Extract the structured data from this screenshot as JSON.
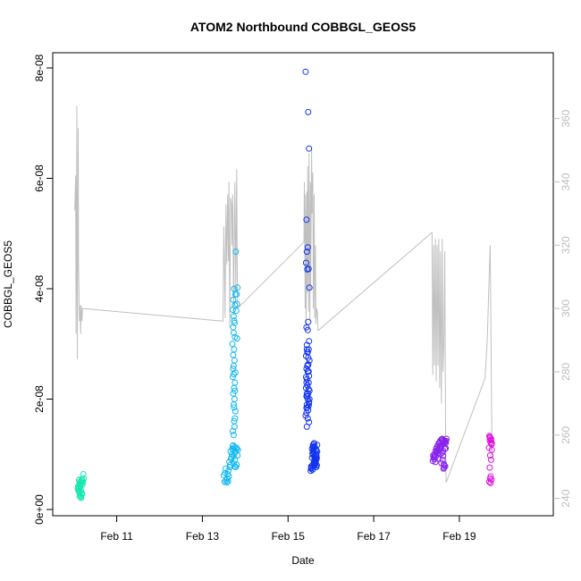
{
  "chart_data": {
    "type": "scatter",
    "title": "ATOM2 Northbound COBBGL_GEOS5",
    "xlabel": "Date",
    "ylabel": "COBBGL_GEOS5",
    "x_unit": "day of February",
    "xlim": [
      9.84,
      20.88
    ],
    "ylim": [
      0,
      8e-08
    ],
    "x_ticks": [
      11,
      13,
      15,
      17,
      19
    ],
    "x_tick_labels": [
      "Feb 11",
      "Feb 13",
      "Feb 15",
      "Feb 17",
      "Feb 19"
    ],
    "y_ticks": [
      0,
      2e-08,
      4e-08,
      6e-08,
      8e-08
    ],
    "y_tick_labels": [
      "0e+00",
      "2e-08",
      "4e-08",
      "6e-08",
      "8e-08"
    ],
    "y2_ticks": [
      240,
      260,
      280,
      300,
      320,
      340,
      360
    ],
    "y2_tick_labels": [
      "240",
      "260",
      "280",
      "300",
      "320",
      "340",
      "360"
    ],
    "y2_range": [
      236.5,
      376
    ],
    "colors": {
      "flight1": "#19e8b0",
      "flight2": "#11b8f0",
      "flight3": "#1133ee",
      "flight4": "#8822ee",
      "flight5": "#dd11dd",
      "secondary_line": "#c0c0c0",
      "axis": "#000000",
      "secondary_axis": "#bdbdbd"
    },
    "series": [
      {
        "color": "#19e8b0",
        "x": [
          10.14,
          10.16,
          10.15,
          10.13,
          10.18,
          10.12,
          10.17,
          10.19,
          10.1,
          10.2,
          10.21,
          10.14,
          10.16,
          10.11,
          10.22,
          10.18,
          10.13,
          10.15,
          10.17,
          10.12,
          10.09,
          10.23,
          10.19,
          10.16,
          10.14,
          10.2,
          10.11,
          10.18,
          10.15,
          10.13
        ],
        "y": [
          3.2e-09,
          3.6e-09,
          4.1e-09,
          4.6e-09,
          5e-09,
          5.3e-09,
          4.8e-09,
          5.5e-09,
          4.2e-09,
          5.2e-09,
          4.9e-09,
          2.6e-09,
          2.3e-09,
          3.9e-09,
          6.4e-09,
          3e-09,
          3.4e-09,
          4.4e-09,
          2.1e-09,
          4e-09,
          3.7e-09,
          5.6e-09,
          2.9e-09,
          5.1e-09,
          2.4e-09,
          4.5e-09,
          3.3e-09,
          2.7e-09,
          4.7e-09,
          5.4e-09
        ]
      },
      {
        "color": "#11b8f0",
        "x": [
          13.52,
          13.55,
          13.58,
          13.5,
          13.6,
          13.54,
          13.62,
          13.57,
          13.53,
          13.65,
          13.61,
          13.67,
          13.59,
          13.63,
          13.69,
          13.64,
          13.68,
          13.66,
          13.7,
          13.72,
          13.73,
          13.71,
          13.75,
          13.74,
          13.76,
          13.77,
          13.73,
          13.75,
          13.72,
          13.74,
          13.76,
          13.71,
          13.77,
          13.73,
          13.75,
          13.72,
          13.74,
          13.7,
          13.76,
          13.73,
          13.72,
          13.75,
          13.74,
          13.73,
          13.71,
          13.76,
          13.72,
          13.77,
          13.74,
          13.73,
          13.75,
          13.72,
          13.74,
          13.76,
          13.71,
          13.73,
          13.75,
          13.77,
          13.72,
          13.74,
          13.76,
          13.73,
          13.79,
          13.81,
          13.8,
          13.82,
          13.78,
          13.81,
          13.79,
          13.83,
          13.8,
          13.82,
          13.78,
          13.8
        ],
        "y": [
          5e-09,
          5.3e-09,
          5.6e-09,
          6.2e-09,
          5.1e-09,
          7.4e-09,
          6e-09,
          4.9e-09,
          6.6e-09,
          8.1e-09,
          7e-09,
          9.2e-09,
          6.4e-09,
          8.6e-09,
          1e-08,
          7.7e-09,
          9.5e-09,
          1.05e-08,
          1.1e-08,
          1.16e-08,
          1.35e-08,
          1.42e-08,
          1.5e-08,
          1.6e-08,
          1.65e-08,
          1.78e-08,
          1.9e-08,
          2e-08,
          2.1e-08,
          2.2e-08,
          2.3e-08,
          2.4e-08,
          2.48e-08,
          2.6e-08,
          2.7e-08,
          2.8e-08,
          2.9e-08,
          3e-08,
          3.12e-08,
          3.2e-08,
          3.3e-08,
          3.38e-08,
          3.42e-08,
          3.5e-08,
          3.62e-08,
          3.7e-08,
          3.8e-08,
          3.9e-08,
          4e-08,
          9.6e-09,
          1.02e-08,
          1.08e-08,
          1.12e-08,
          9e-09,
          1.15e-08,
          8.3e-09,
          7.8e-09,
          1.06e-08,
          2.55e-08,
          1.85e-08,
          2.15e-08,
          2.45e-08,
          3.6e-08,
          3.72e-08,
          3.9e-08,
          4.02e-08,
          4.67e-08,
          3.1e-08,
          1.12e-08,
          1.08e-08,
          1.1e-08,
          9.8e-09,
          7.7e-09,
          8.1e-09
        ]
      },
      {
        "color": "#1133ee",
        "x": [
          15.41,
          15.47,
          15.49,
          15.43,
          15.46,
          15.44,
          15.48,
          15.45,
          15.42,
          15.5,
          15.47,
          15.43,
          15.46,
          15.49,
          15.44,
          15.48,
          15.45,
          15.42,
          15.5,
          15.47,
          15.43,
          15.46,
          15.49,
          15.44,
          15.48,
          15.45,
          15.42,
          15.5,
          15.47,
          15.43,
          15.46,
          15.49,
          15.44,
          15.48,
          15.45,
          15.47,
          15.43,
          15.46,
          15.49,
          15.44,
          15.48,
          15.45,
          15.42,
          15.5,
          15.47,
          15.43,
          15.46,
          15.49,
          15.44,
          15.45,
          15.48,
          15.43,
          15.47,
          15.44,
          15.41,
          15.53,
          15.55,
          15.57,
          15.6,
          15.62,
          15.64,
          15.66,
          15.68,
          15.56,
          15.58,
          15.61,
          15.63,
          15.65,
          15.67,
          15.59,
          15.54,
          15.6,
          15.62,
          15.64,
          15.66,
          15.57,
          15.59,
          15.61,
          15.63,
          15.65,
          15.55,
          15.58,
          15.6,
          15.62,
          15.64,
          15.68,
          15.66,
          15.56,
          15.58,
          15.61,
          15.63,
          15.65,
          15.67,
          15.59,
          15.54,
          15.6,
          15.62,
          15.64,
          15.66,
          15.57
        ],
        "y": [
          7.93e-08,
          7.2e-08,
          6.54e-08,
          5.25e-08,
          4.75e-08,
          4.67e-08,
          4.36e-08,
          4.35e-08,
          4.47e-08,
          4.02e-08,
          3.4e-08,
          3.3e-08,
          3.25e-08,
          3.05e-08,
          2.98e-08,
          2.9e-08,
          2.85e-08,
          2.78e-08,
          2.7e-08,
          2.62e-08,
          2.55e-08,
          2.5e-08,
          2.42e-08,
          2.36e-08,
          2.3e-08,
          2.25e-08,
          2.2e-08,
          2.15e-08,
          2.1e-08,
          2.05e-08,
          2e-08,
          1.95e-08,
          1.9e-08,
          1.88e-08,
          1.85e-08,
          1.8e-08,
          1.75e-08,
          1.65e-08,
          1.58e-08,
          1.5e-08,
          2.18e-08,
          2.05e-08,
          2.4e-08,
          2e-08,
          2.63e-08,
          2.3e-08,
          2.85e-08,
          1.92e-08,
          2.1e-08,
          2.6e-08,
          2.5e-08,
          1.84e-08,
          2.75e-08,
          2.9e-08,
          1.7e-08,
          7e-09,
          7.5e-09,
          8e-09,
          8.5e-09,
          9e-09,
          9.5e-09,
          1e-08,
          1.05e-08,
          1.1e-08,
          1.15e-08,
          1.2e-08,
          8.2e-09,
          8.8e-09,
          9.3e-09,
          1.08e-08,
          7.8e-09,
          1.12e-08,
          7.9e-09,
          8.6e-09,
          9.7e-09,
          1.02e-08,
          1.18e-08,
          8.1e-09,
          8.4e-09,
          9.2e-09,
          7.6e-09,
          9.9e-09,
          1.06e-08,
          1.14e-08,
          8.3e-09,
          1.17e-08,
          7.7e-09,
          9.4e-09,
          1e-08,
          8.7e-09,
          9.6e-09,
          1.09e-08,
          8e-09,
          1.13e-08,
          7.4e-09,
          1.04e-08,
          9.1e-09,
          8.9e-09,
          1.07e-08,
          7.2e-09
        ]
      },
      {
        "color": "#8822ee",
        "x": [
          18.38,
          18.4,
          18.42,
          18.44,
          18.46,
          18.48,
          18.5,
          18.52,
          18.54,
          18.56,
          18.58,
          18.6,
          18.62,
          18.64,
          18.66,
          18.68,
          18.7,
          18.41,
          18.45,
          18.49,
          18.53,
          18.57,
          18.61,
          18.65,
          18.69,
          18.39,
          18.43,
          18.47,
          18.51,
          18.55,
          18.59,
          18.63,
          18.67,
          18.44,
          18.5,
          18.56,
          18.62,
          18.68,
          18.42,
          18.48,
          18.54,
          18.6,
          18.66,
          18.58,
          18.61,
          18.64,
          18.63,
          18.65,
          18.67,
          18.62,
          18.64
        ],
        "y": [
          8.8e-09,
          9.4e-09,
          9.9e-09,
          1.05e-08,
          1.1e-08,
          1.14e-08,
          1.17e-08,
          1.2e-08,
          1.22e-08,
          1.25e-08,
          1.27e-08,
          1.28e-08,
          1.26e-08,
          1.24e-08,
          1.22e-08,
          1.2e-08,
          1.28e-08,
          9.1e-09,
          9.6e-09,
          1.02e-08,
          1.08e-08,
          1.12e-08,
          1.18e-08,
          1.21e-08,
          1.24e-08,
          9.8e-09,
          1e-08,
          1.04e-08,
          1.09e-08,
          1.13e-08,
          1.16e-08,
          1.19e-08,
          1.23e-08,
          8.6e-09,
          9.2e-09,
          1.01e-08,
          1.06e-08,
          1.11e-08,
          9.5e-09,
          1.07e-08,
          1.15e-08,
          1.03e-08,
          1.1e-08,
          8.4e-09,
          9e-09,
          7.6e-09,
          7.4e-09,
          8e-09,
          7.8e-09,
          9.7e-09,
          8.2e-09
        ]
      },
      {
        "color": "#dd11dd",
        "x": [
          19.7,
          19.72,
          19.74,
          19.71,
          19.73,
          19.75,
          19.69,
          19.76,
          19.72,
          19.74,
          19.71,
          19.73,
          19.75,
          19.7,
          19.72,
          19.74,
          19.76,
          19.71,
          19.73
        ],
        "y": [
          1.33e-08,
          1.3e-08,
          1.28e-08,
          1.25e-08,
          1.22e-08,
          1.18e-08,
          1.12e-08,
          1.08e-08,
          9.8e-09,
          9e-09,
          7.6e-09,
          6e-09,
          5.4e-09,
          5e-09,
          5.6e-09,
          1.26e-08,
          1.2e-08,
          1.31e-08,
          4.8e-09
        ]
      }
    ],
    "secondary_series": {
      "color": "#c0c0c0",
      "x": [
        10.02,
        10.04,
        10.05,
        10.07,
        10.08,
        10.1,
        10.11,
        10.13,
        10.14,
        10.16,
        10.17,
        10.19,
        10.2,
        13.48,
        13.5,
        13.52,
        13.53,
        13.55,
        13.57,
        13.59,
        13.61,
        13.62,
        13.64,
        13.66,
        13.68,
        13.69,
        13.71,
        13.73,
        13.75,
        13.76,
        13.78,
        13.8,
        13.82,
        15.37,
        15.38,
        15.4,
        15.41,
        15.42,
        15.44,
        15.45,
        15.46,
        15.48,
        15.49,
        15.51,
        15.52,
        15.53,
        15.55,
        15.56,
        15.58,
        15.59,
        15.61,
        15.62,
        15.64,
        15.65,
        15.67,
        15.69,
        15.7,
        18.36,
        18.38,
        18.4,
        18.42,
        18.44,
        18.46,
        18.48,
        18.5,
        18.52,
        18.54,
        18.56,
        18.58,
        18.6,
        18.62,
        18.64,
        18.66,
        18.68,
        18.69,
        19.6,
        19.65,
        19.7,
        19.72,
        19.74,
        19.75,
        19.77
      ],
      "y": [
        331,
        342,
        292,
        364,
        284,
        357,
        313,
        296,
        301,
        292,
        301,
        296,
        300,
        296,
        326,
        310,
        297,
        333,
        314,
        336,
        315,
        340,
        294,
        335,
        333,
        320,
        336,
        298,
        331,
        340,
        305,
        344,
        300,
        321,
        340,
        300,
        336,
        293,
        337,
        305,
        345,
        299,
        349,
        296,
        340,
        306,
        351,
        330,
        343,
        300,
        336,
        297,
        320,
        295,
        300,
        298,
        293,
        324,
        279,
        320,
        282,
        322,
        277,
        320,
        282,
        322,
        275,
        318,
        270,
        322,
        280,
        290,
        318,
        256,
        245,
        278,
        290,
        312,
        320,
        288,
        268,
        252
      ]
    }
  }
}
